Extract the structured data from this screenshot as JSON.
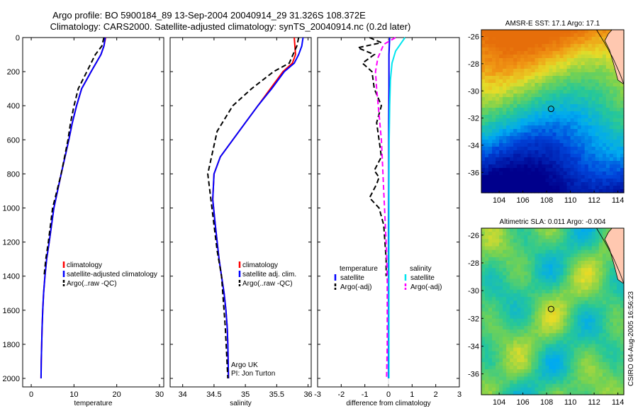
{
  "title_line1": "Argo profile: BO 5900184_89 13-Sep-2004 20040914_29 31.326S 108.372E",
  "title_line2": "Climatology: CARS2000. Satellite-adjusted climatology: synTS_20040914.nc (0.2d later)",
  "side_text": "CSIRO 04-Aug-2005 16:56:23",
  "colors": {
    "climatology": "#ff0000",
    "satellite": "#0000ff",
    "argo": "#000000",
    "salinity": "#00e5ee",
    "salinity_argo": "#ff00ff",
    "coast": "#000000",
    "land": "#ffc8b0"
  },
  "chart_data": [
    {
      "type": "line",
      "xlabel": "temperature",
      "ylabel": "",
      "xlim": [
        -2,
        31
      ],
      "ylim": [
        2050,
        0
      ],
      "y_inverted": true,
      "xticks": [
        0,
        10,
        20,
        30
      ],
      "yticks": [
        0,
        200,
        400,
        600,
        800,
        1000,
        1200,
        1400,
        1600,
        1800,
        2000
      ],
      "legend": [
        "climatology",
        "satellite-adjusted climatology",
        "Argo(..raw -QC)"
      ],
      "series": [
        {
          "name": "climatology",
          "color": "#ff0000",
          "dash": false,
          "x": [
            17.4,
            17.0,
            16.3,
            14.0,
            11.8,
            10.6,
            9.6,
            8.8,
            7.0,
            5.3,
            4.2,
            3.6,
            3.2,
            2.9,
            2.7,
            2.55,
            2.45,
            2.35,
            2.3
          ],
          "y": [
            0,
            50,
            100,
            200,
            300,
            400,
            500,
            600,
            800,
            1000,
            1200,
            1300,
            1400,
            1500,
            1600,
            1700,
            1800,
            1900,
            2000
          ]
        },
        {
          "name": "satellite-adjusted climatology",
          "color": "#0000ff",
          "dash": false,
          "x": [
            17.3,
            17.0,
            16.3,
            14.0,
            11.8,
            10.6,
            9.6,
            8.8,
            7.0,
            5.3,
            4.2,
            3.6,
            3.2,
            2.9,
            2.7,
            2.55,
            2.45,
            2.35,
            2.3
          ],
          "y": [
            0,
            50,
            100,
            200,
            300,
            400,
            500,
            600,
            800,
            1000,
            1200,
            1300,
            1400,
            1500,
            1600,
            1700,
            1800,
            1900,
            2000
          ]
        },
        {
          "name": "Argo(..raw -QC)",
          "color": "#000000",
          "dash": true,
          "x": [
            17.0,
            16.5,
            15.0,
            13.0,
            11.0,
            10.0,
            9.2,
            8.6,
            7.0,
            5.0,
            4.0,
            3.4,
            3.0
          ],
          "y": [
            0,
            50,
            100,
            200,
            300,
            400,
            500,
            600,
            800,
            1000,
            1200,
            1300,
            1400
          ]
        }
      ]
    },
    {
      "type": "line",
      "xlabel": "salinity",
      "ylabel": "",
      "xlim": [
        33.8,
        36.05
      ],
      "ylim": [
        2050,
        0
      ],
      "y_inverted": true,
      "xticks": [
        34,
        34.5,
        35,
        35.5,
        36
      ],
      "legend": [
        "climatology",
        "satellite adj. clim.",
        "Argo(..raw -QC)"
      ],
      "annotation_line1": "Argo UK",
      "annotation_line2": "PI: Jon Turton",
      "series": [
        {
          "name": "climatology",
          "color": "#ff0000",
          "dash": false,
          "x": [
            35.78,
            35.79,
            35.8,
            35.75,
            35.6,
            35.4,
            35.2,
            35.0,
            34.8,
            34.6,
            34.5,
            34.48,
            34.52,
            34.58,
            34.62,
            34.66,
            34.69,
            34.71,
            34.72,
            34.73
          ],
          "y": [
            0,
            50,
            100,
            150,
            200,
            300,
            400,
            500,
            600,
            700,
            800,
            950,
            1100,
            1300,
            1400,
            1500,
            1600,
            1700,
            1800,
            2000
          ]
        },
        {
          "name": "satellite adj. clim.",
          "color": "#0000ff",
          "dash": false,
          "x": [
            35.92,
            35.9,
            35.85,
            35.78,
            35.62,
            35.42,
            35.2,
            35.0,
            34.8,
            34.6,
            34.5,
            34.48,
            34.52,
            34.58,
            34.62,
            34.66,
            34.69,
            34.71,
            34.72,
            34.73
          ],
          "y": [
            0,
            50,
            100,
            150,
            200,
            300,
            400,
            500,
            600,
            700,
            800,
            950,
            1100,
            1300,
            1400,
            1500,
            1600,
            1700,
            1800,
            2000
          ]
        },
        {
          "name": "Argo(..raw -QC)",
          "color": "#000000",
          "dash": true,
          "x": [
            35.85,
            35.82,
            35.7,
            35.45,
            35.1,
            34.8,
            34.55,
            34.4,
            34.45,
            34.5,
            34.55,
            34.62,
            34.68,
            34.72
          ],
          "y": [
            0,
            50,
            150,
            200,
            300,
            400,
            550,
            800,
            950,
            1100,
            1250,
            1400,
            1700,
            2000
          ]
        }
      ]
    },
    {
      "type": "line",
      "xlabel": "difference from climatology",
      "ylabel": "",
      "xlim": [
        -3,
        3
      ],
      "ylim": [
        2050,
        0
      ],
      "y_inverted": true,
      "xticks": [
        -3,
        -2,
        -1,
        0,
        1,
        2,
        3
      ],
      "legend": [
        "temperature",
        "satellite",
        "Argo(-adj)",
        "salinity",
        "satellite",
        "Argo(-adj)"
      ],
      "series": [
        {
          "name": "temperature satellite",
          "color": "#0000ff",
          "dash": false,
          "x": [
            0.05,
            0.02,
            0.02,
            0.01,
            0.01,
            0.0,
            0.0,
            0.0,
            0.0
          ],
          "y": [
            0,
            100,
            300,
            500,
            800,
            1100,
            1400,
            1700,
            2000
          ]
        },
        {
          "name": "temperature Argo(-adj)",
          "color": "#000000",
          "dash": true,
          "x": [
            -0.8,
            -0.3,
            -1.3,
            -0.6,
            -1.1,
            -0.7,
            -0.6,
            -0.3,
            -0.5,
            -0.4,
            -0.3,
            -0.6,
            -0.4,
            -0.5,
            -0.8,
            -0.4,
            -0.2,
            -0.1,
            -0.1
          ],
          "y": [
            0,
            30,
            60,
            100,
            150,
            200,
            300,
            400,
            500,
            600,
            700,
            780,
            820,
            860,
            940,
            1000,
            1100,
            1300,
            1400
          ]
        },
        {
          "name": "salinity satellite",
          "color": "#00e5ee",
          "dash": false,
          "x": [
            0.7,
            0.55,
            0.3,
            0.15,
            0.08,
            0.05,
            0.03,
            0.02,
            0.02,
            0.02,
            0.02
          ],
          "y": [
            0,
            30,
            80,
            150,
            250,
            400,
            600,
            900,
            1200,
            1600,
            2000
          ]
        },
        {
          "name": "salinity Argo(-adj)",
          "color": "#ff00ff",
          "dash": true,
          "x": [
            0.3,
            -0.2,
            -0.45,
            -0.55,
            -0.5,
            -0.4,
            -0.3,
            -0.25,
            -0.2,
            -0.15,
            -0.1,
            -0.05,
            -0.05,
            -0.05,
            -0.08
          ],
          "y": [
            0,
            40,
            120,
            200,
            300,
            450,
            600,
            750,
            900,
            1050,
            1200,
            1400,
            1600,
            1800,
            2000
          ]
        }
      ]
    },
    {
      "type": "heatmap",
      "title": "AMSR-E SST: 17.1 Argo: 17.1",
      "xlim": [
        102.5,
        114.5
      ],
      "ylim": [
        -37.5,
        -25.5
      ],
      "xticks": [
        104,
        106,
        108,
        110,
        112,
        114
      ],
      "yticks": [
        -26,
        -28,
        -30,
        -32,
        -34,
        -36
      ],
      "marker": {
        "lon": 108.372,
        "lat": -31.326
      }
    },
    {
      "type": "heatmap",
      "title": "Altimetric SLA: 0.011 Argo: -0.004",
      "xlim": [
        102.5,
        114.5
      ],
      "ylim": [
        -37.5,
        -25.5
      ],
      "xticks": [
        104,
        106,
        108,
        110,
        112,
        114
      ],
      "yticks": [
        -26,
        -28,
        -30,
        -32,
        -34,
        -36
      ],
      "marker": {
        "lon": 108.372,
        "lat": -31.326
      }
    }
  ]
}
